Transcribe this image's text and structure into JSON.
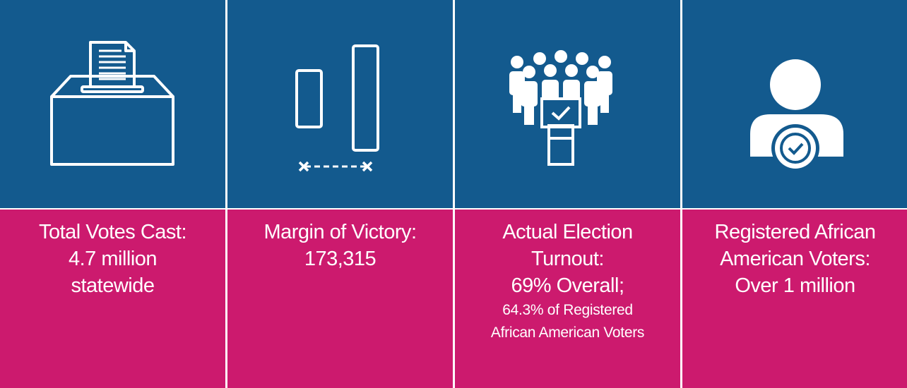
{
  "panels": [
    {
      "lines": [
        "Total Votes Cast:",
        "4.7 million",
        "statewide"
      ]
    },
    {
      "lines": [
        "Margin of Victory:",
        "173,315"
      ]
    },
    {
      "lines": [
        "Actual Election",
        "Turnout:",
        "69% Overall;"
      ],
      "note_lines": [
        "64.3% of Registered",
        "African American Voters"
      ]
    },
    {
      "lines": [
        "Registered African",
        "American Voters:",
        "Over 1 million"
      ]
    }
  ]
}
